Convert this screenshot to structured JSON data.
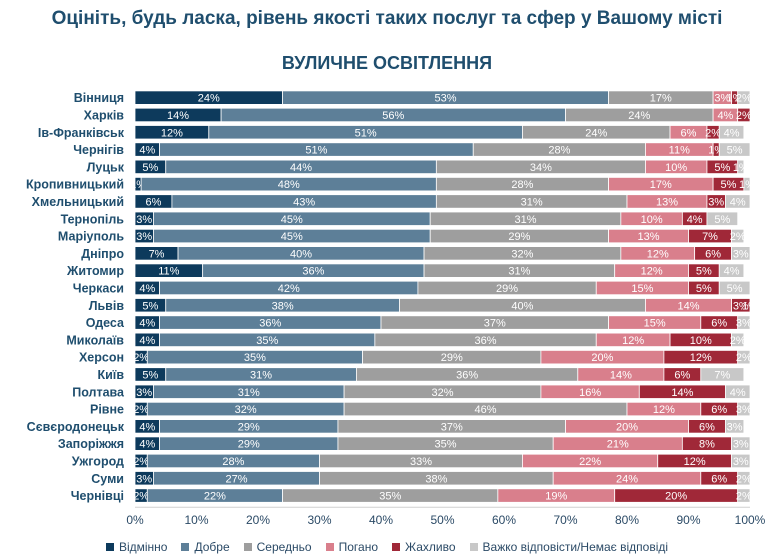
{
  "title": "Оцініть, будь ласка, рівень якості таких послуг та сфер у Вашому місті",
  "chart_data": {
    "type": "bar",
    "orientation": "horizontal-stacked-100",
    "title": "ВУЛИЧНЕ ОСВІТЛЕННЯ",
    "xlim": [
      0,
      100
    ],
    "xticks": [
      "0%",
      "10%",
      "20%",
      "30%",
      "40%",
      "50%",
      "60%",
      "70%",
      "80%",
      "90%",
      "100%"
    ],
    "categories": [
      "Вінниця",
      "Харків",
      "Ів-Франківськ",
      "Чернігів",
      "Луцьк",
      "Кропивницький",
      "Хмельницький",
      "Тернопіль",
      "Маріуполь",
      "Дніпро",
      "Житомир",
      "Черкаси",
      "Львів",
      "Одеса",
      "Миколаїв",
      "Херсон",
      "Київ",
      "Полтава",
      "Рівне",
      "Сєвєродонецьк",
      "Запоріжжя",
      "Ужгород",
      "Суми",
      "Чернівці"
    ],
    "series": [
      {
        "name": "Відмінно",
        "color": "#0d3a5c",
        "text_color": "#ffffff",
        "values": [
          24,
          14,
          12,
          4,
          5,
          1,
          6,
          3,
          3,
          7,
          11,
          4,
          5,
          4,
          4,
          2,
          5,
          3,
          2,
          4,
          4,
          2,
          3,
          2
        ],
        "labels": [
          "24%",
          "14%",
          "12%",
          "4%",
          "5%",
          "1%",
          "6%",
          "3%",
          "3%",
          "7%",
          "11%",
          "4%",
          "5%",
          "4%",
          "4%",
          "2%",
          "5%",
          "3%",
          "2%",
          "4%",
          "4%",
          "2%",
          "3%",
          "2%"
        ]
      },
      {
        "name": "Добре",
        "color": "#5d7f98",
        "text_color": "#ffffff",
        "values": [
          53,
          56,
          51,
          51,
          44,
          48,
          43,
          45,
          45,
          40,
          36,
          42,
          38,
          36,
          35,
          35,
          31,
          31,
          32,
          29,
          29,
          28,
          27,
          22
        ],
        "labels": [
          "53%",
          "56%",
          "51%",
          "51%",
          "44%",
          "48%",
          "43%",
          "45%",
          "45%",
          "40%",
          "36%",
          "42%",
          "38%",
          "36%",
          "35%",
          "35%",
          "31%",
          "31%",
          "32%",
          "29%",
          "29%",
          "28%",
          "27%",
          "22%"
        ]
      },
      {
        "name": "Середньо",
        "color": "#9e9e9e",
        "text_color": "#ffffff",
        "values": [
          17,
          24,
          24,
          28,
          34,
          28,
          31,
          31,
          29,
          32,
          31,
          29,
          40,
          37,
          36,
          29,
          36,
          32,
          46,
          37,
          35,
          33,
          38,
          35
        ],
        "labels": [
          "17%",
          "24%",
          "24%",
          "28%",
          "34%",
          "28%",
          "31%",
          "31%",
          "29%",
          "32%",
          "31%",
          "29%",
          "40%",
          "37%",
          "36%",
          "29%",
          "36%",
          "32%",
          "46%",
          "37%",
          "35%",
          "33%",
          "38%",
          "35%"
        ]
      },
      {
        "name": "Погано",
        "color": "#d97f8c",
        "text_color": "#ffffff",
        "values": [
          3,
          4,
          6,
          11,
          10,
          17,
          13,
          10,
          13,
          12,
          12,
          15,
          14,
          15,
          12,
          20,
          14,
          16,
          12,
          20,
          21,
          22,
          24,
          19
        ],
        "labels": [
          "3%",
          "4%",
          "6%",
          "11%",
          "10%",
          "17%",
          "13%",
          "10%",
          "13%",
          "12%",
          "12%",
          "15%",
          "14%",
          "15%",
          "12%",
          "20%",
          "14%",
          "16%",
          "12%",
          "20%",
          "21%",
          "22%",
          "24%",
          "19%"
        ]
      },
      {
        "name": "Жахливо",
        "color": "#a02838",
        "text_color": "#ffffff",
        "values": [
          1,
          2,
          2,
          1,
          5,
          5,
          3,
          4,
          7,
          6,
          5,
          5,
          3,
          6,
          10,
          12,
          6,
          14,
          6,
          6,
          8,
          12,
          6,
          20
        ],
        "labels": [
          "1%",
          "2%",
          "2%",
          "1%",
          "5%",
          "5%",
          "3%",
          "4%",
          "7%",
          "6%",
          "5%",
          "5%",
          "3%",
          "6%",
          "10%",
          "12%",
          "6%",
          "14%",
          "6%",
          "6%",
          "8%",
          "12%",
          "6%",
          "20%"
        ]
      },
      {
        "name": "Важко відповісти/Немає відповіді",
        "color": "#c8c8c8",
        "text_color": "#ffffff",
        "values": [
          2,
          0,
          4,
          5,
          1,
          1,
          4,
          5,
          2,
          3,
          4,
          5,
          1,
          3,
          2,
          2,
          7,
          4,
          3,
          3,
          3,
          3,
          2,
          2
        ],
        "labels": [
          "2%",
          "",
          "4%",
          "5%",
          "1%",
          "1%",
          "4%",
          "5%",
          "2%",
          "3%",
          "4%",
          "5%",
          "1%",
          "3%",
          "2%",
          "2%",
          "7%",
          "4%",
          "3%",
          "3%",
          "3%",
          "3%",
          "2%",
          "2%"
        ]
      }
    ]
  }
}
